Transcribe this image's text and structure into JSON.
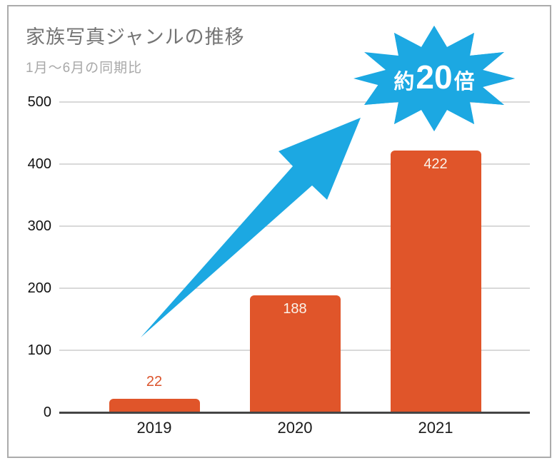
{
  "header": {
    "title": "家族写真ジャンルの推移",
    "subtitle": "1月〜6月の同期比"
  },
  "badge": {
    "prefix": "約",
    "number": "20",
    "suffix": "倍",
    "full_text": "約20倍"
  },
  "colors": {
    "bar_orange": "#e0552a",
    "accent_blue": "#1ca8e2",
    "gridline": "#d9d9d9",
    "axis": "#454545",
    "value_label_inside": "#fbf3ea",
    "value_label_outside": "#db532b",
    "title_gray": "#747474",
    "subtitle_gray": "#a8a8a8",
    "frame_gray": "#ababab"
  },
  "chart_data": {
    "type": "bar",
    "title": "家族写真ジャンルの推移",
    "subtitle": "1月〜6月の同期比",
    "categories": [
      "2019",
      "2020",
      "2021"
    ],
    "values": [
      22,
      188,
      422
    ],
    "value_labels": [
      {
        "text": "22",
        "placement": "above"
      },
      {
        "text": "188",
        "placement": "inside"
      },
      {
        "text": "422",
        "placement": "inside"
      }
    ],
    "xlabel": "",
    "ylabel": "",
    "ylim": [
      0,
      500
    ],
    "yticks": [
      0,
      100,
      200,
      300,
      400,
      500
    ],
    "grid": true,
    "legend": "none",
    "annotation": {
      "text": "約20倍",
      "shape": "starburst",
      "arrow": "up-right"
    }
  }
}
